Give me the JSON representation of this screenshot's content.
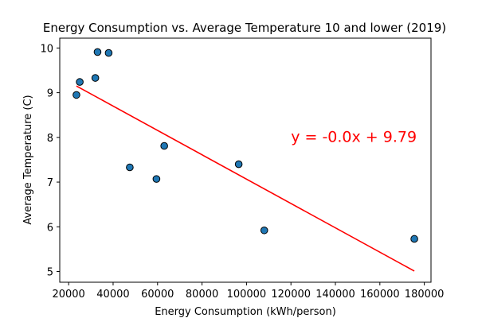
{
  "chart_data": {
    "type": "scatter",
    "title": "Energy Consumption vs. Average Temperature 10 and lower (2019)",
    "xlabel": "Energy Consumption (kWh/person)",
    "ylabel": "Average Temperature (C)",
    "xlim": [
      16000,
      183000
    ],
    "ylim": [
      4.76,
      10.22
    ],
    "x_ticks": [
      20000,
      40000,
      60000,
      80000,
      100000,
      120000,
      140000,
      160000,
      180000
    ],
    "x_tick_labels": [
      "20000",
      "40000",
      "60000",
      "80000",
      "100000",
      "120000",
      "140000",
      "160000",
      "180000"
    ],
    "y_ticks": [
      5,
      6,
      7,
      8,
      9,
      10
    ],
    "y_tick_labels": [
      "5",
      "6",
      "7",
      "8",
      "9",
      "10"
    ],
    "grid": false,
    "points": [
      {
        "x": 23500,
        "y": 8.95
      },
      {
        "x": 25000,
        "y": 9.24
      },
      {
        "x": 32000,
        "y": 9.33
      },
      {
        "x": 33000,
        "y": 9.91
      },
      {
        "x": 38000,
        "y": 9.89
      },
      {
        "x": 47500,
        "y": 7.33
      },
      {
        "x": 59500,
        "y": 7.07
      },
      {
        "x": 63000,
        "y": 7.81
      },
      {
        "x": 96500,
        "y": 7.4
      },
      {
        "x": 108000,
        "y": 5.92
      },
      {
        "x": 175500,
        "y": 5.73
      }
    ],
    "point_color": "#1f77b4",
    "regression": {
      "x_start": 23500,
      "x_end": 175500,
      "y_start": 9.15,
      "y_end": 5.01,
      "color": "#ff0000",
      "equation_label": "y = -0.0x + 9.79",
      "equation_position_data": {
        "x": 120000,
        "y": 8.02
      }
    }
  }
}
